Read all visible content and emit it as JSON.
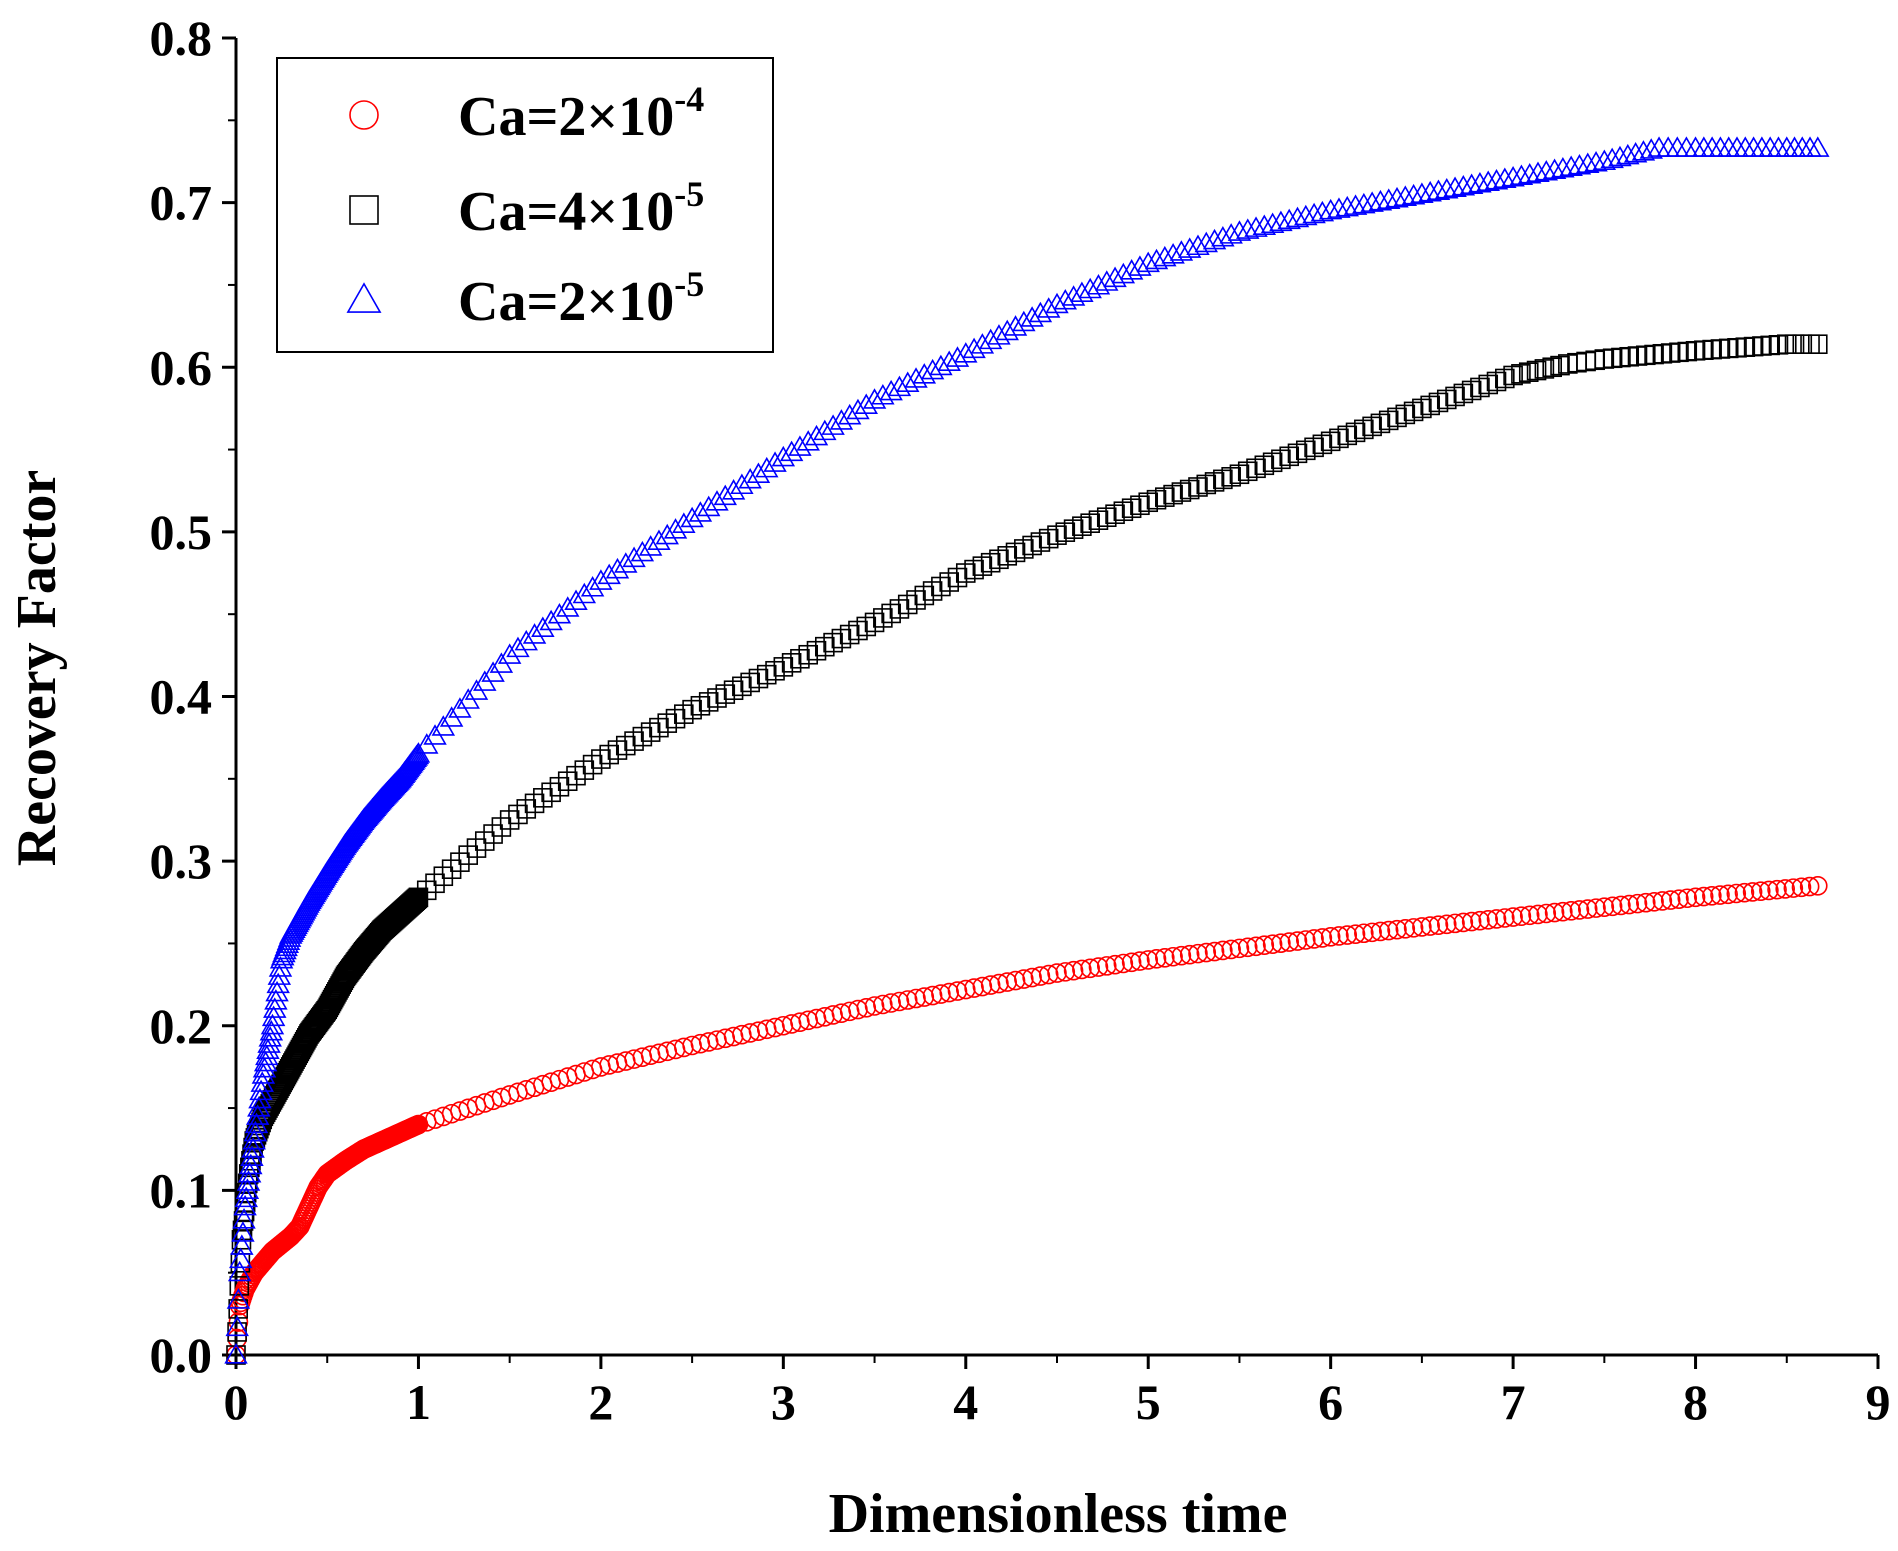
{
  "chart_data": {
    "type": "scatter",
    "title": "",
    "xlabel": "Dimensionless time",
    "ylabel": "Recovery Factor",
    "xlim": [
      0,
      9
    ],
    "ylim": [
      0,
      0.8
    ],
    "xticks": [
      "0",
      "1",
      "2",
      "3",
      "4",
      "5",
      "6",
      "7",
      "8",
      "9"
    ],
    "yticks": [
      "0.0",
      "0.1",
      "0.2",
      "0.3",
      "0.4",
      "0.5",
      "0.6",
      "0.7",
      "0.8"
    ],
    "legend_position": "top-left",
    "series": [
      {
        "name": "Ca=2×10",
        "exponent": "-4",
        "marker": "circle",
        "color": "#ff0000",
        "x": [
          0,
          0.02,
          0.05,
          0.1,
          0.2,
          0.3,
          0.35,
          0.4,
          0.45,
          0.5,
          0.6,
          0.7,
          0.8,
          0.9,
          1.0,
          1.5,
          2.0,
          2.5,
          3.0,
          3.5,
          4.0,
          4.5,
          5.0,
          5.5,
          6.0,
          6.5,
          7.0,
          7.5,
          8.0,
          8.67
        ],
        "y": [
          0,
          0.03,
          0.04,
          0.05,
          0.063,
          0.072,
          0.078,
          0.09,
          0.102,
          0.11,
          0.118,
          0.125,
          0.13,
          0.135,
          0.14,
          0.158,
          0.175,
          0.188,
          0.2,
          0.212,
          0.222,
          0.232,
          0.24,
          0.247,
          0.254,
          0.26,
          0.266,
          0.272,
          0.278,
          0.285
        ]
      },
      {
        "name": "Ca=4×10",
        "exponent": "-5",
        "marker": "square",
        "color": "#000000",
        "x": [
          0,
          0.03,
          0.07,
          0.1,
          0.15,
          0.2,
          0.3,
          0.4,
          0.5,
          0.6,
          0.7,
          0.8,
          0.9,
          1.0,
          1.5,
          2.0,
          2.5,
          3.0,
          3.5,
          4.0,
          4.5,
          5.0,
          5.5,
          6.0,
          6.5,
          7.0,
          7.3,
          7.5,
          8.0,
          8.5,
          8.67
        ],
        "y": [
          0,
          0.07,
          0.11,
          0.13,
          0.145,
          0.155,
          0.175,
          0.195,
          0.21,
          0.23,
          0.245,
          0.258,
          0.268,
          0.278,
          0.325,
          0.362,
          0.392,
          0.418,
          0.445,
          0.475,
          0.498,
          0.518,
          0.535,
          0.555,
          0.575,
          0.595,
          0.602,
          0.605,
          0.61,
          0.614,
          0.614
        ]
      },
      {
        "name": "Ca=2×10",
        "exponent": "-5",
        "marker": "triangle",
        "color": "#0000ff",
        "x": [
          0,
          0.02,
          0.05,
          0.1,
          0.15,
          0.2,
          0.25,
          0.3,
          0.4,
          0.5,
          0.6,
          0.7,
          0.8,
          0.9,
          1.0,
          1.5,
          2.0,
          2.5,
          3.0,
          3.5,
          4.0,
          4.5,
          5.0,
          5.5,
          6.0,
          6.5,
          7.0,
          7.5,
          7.8,
          8.0,
          8.5,
          8.67
        ],
        "y": [
          0,
          0.05,
          0.09,
          0.13,
          0.17,
          0.2,
          0.24,
          0.255,
          0.275,
          0.293,
          0.31,
          0.325,
          0.338,
          0.35,
          0.365,
          0.425,
          0.47,
          0.508,
          0.545,
          0.58,
          0.608,
          0.638,
          0.663,
          0.682,
          0.695,
          0.705,
          0.715,
          0.725,
          0.733,
          0.733,
          0.733,
          0.733
        ]
      }
    ]
  }
}
